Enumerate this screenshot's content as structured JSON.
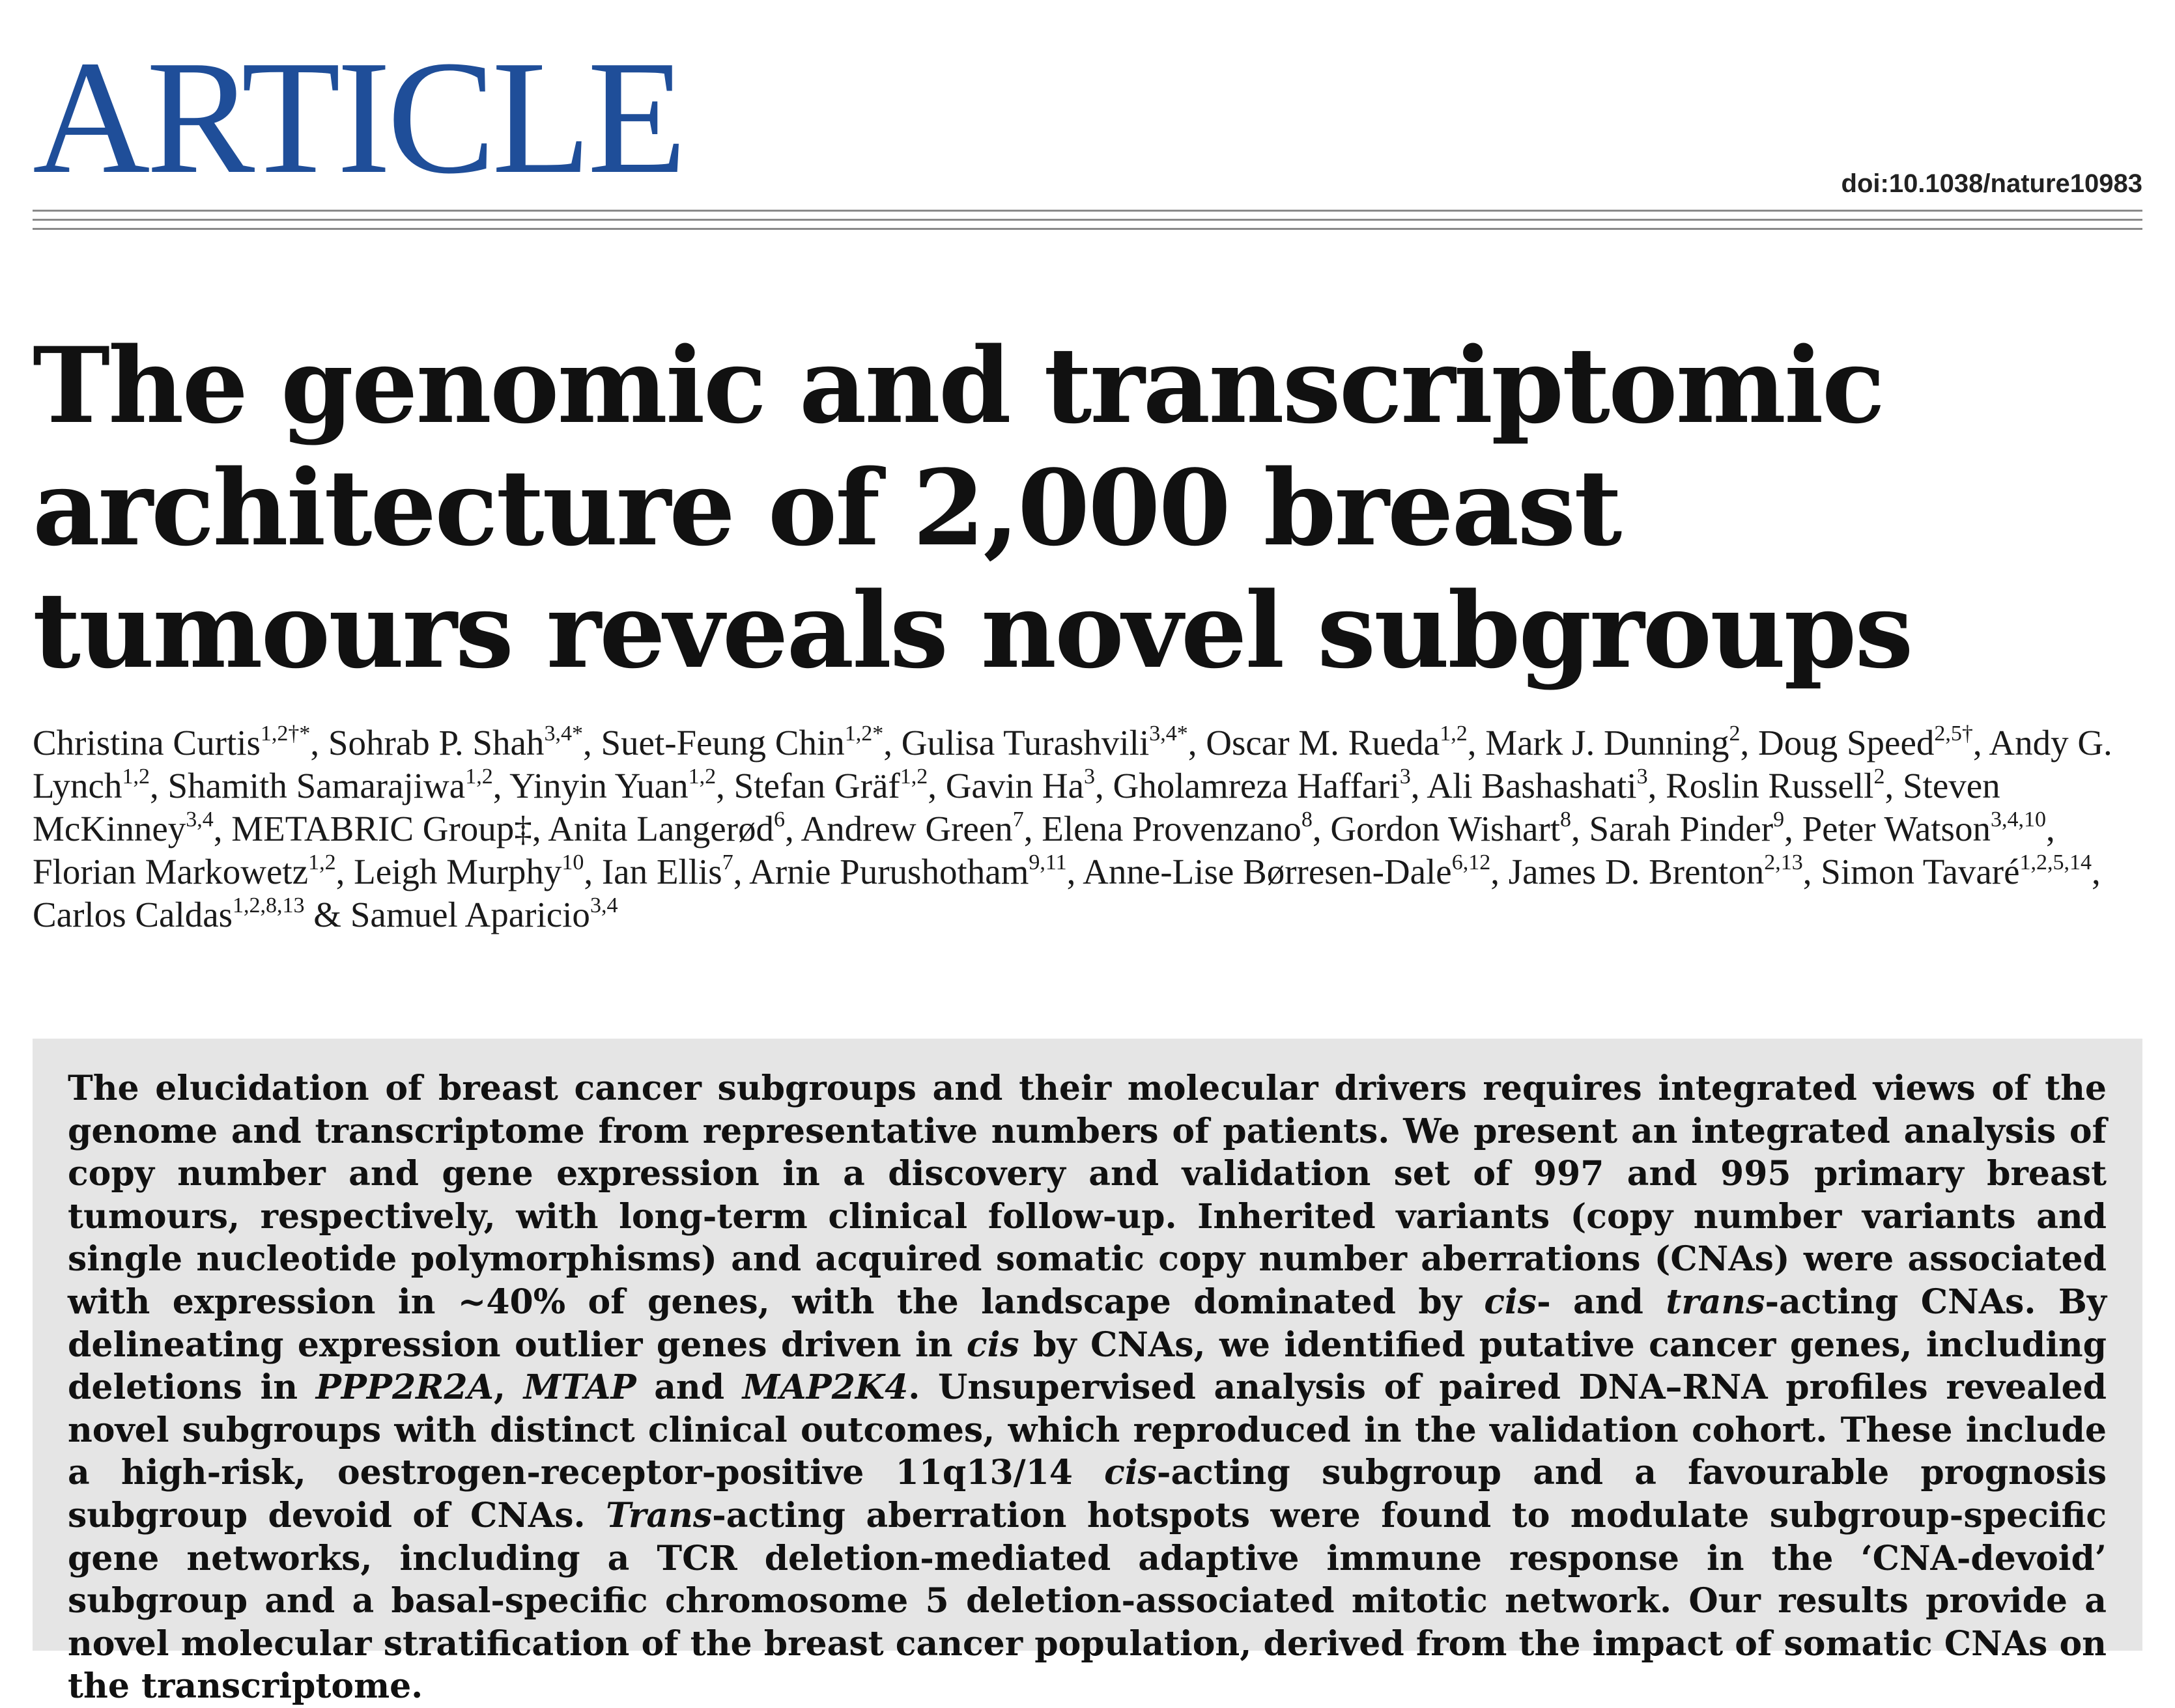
{
  "header": {
    "section_label": "ARTICLE",
    "doi": "doi:10.1038/nature10983",
    "accent_color": "#1f4e99"
  },
  "title": "The genomic and transcriptomic architecture of 2,000 breast tumours reveals novel subgroups",
  "authors": [
    {
      "name": "Christina Curtis",
      "marks": "1,2†*"
    },
    {
      "name": "Sohrab P. Shah",
      "marks": "3,4*"
    },
    {
      "name": "Suet-Feung Chin",
      "marks": "1,2*"
    },
    {
      "name": "Gulisa Turashvili",
      "marks": "3,4*"
    },
    {
      "name": "Oscar M. Rueda",
      "marks": "1,2"
    },
    {
      "name": "Mark J. Dunning",
      "marks": "2"
    },
    {
      "name": "Doug Speed",
      "marks": "2,5†"
    },
    {
      "name": "Andy G. Lynch",
      "marks": "1,2"
    },
    {
      "name": "Shamith Samarajiwa",
      "marks": "1,2"
    },
    {
      "name": "Yinyin Yuan",
      "marks": "1,2"
    },
    {
      "name": "Stefan Gräf",
      "marks": "1,2"
    },
    {
      "name": "Gavin Ha",
      "marks": "3"
    },
    {
      "name": "Gholamreza Haffari",
      "marks": "3"
    },
    {
      "name": "Ali Bashashati",
      "marks": "3"
    },
    {
      "name": "Roslin Russell",
      "marks": "2"
    },
    {
      "name": "Steven McKinney",
      "marks": "3,4"
    },
    {
      "name": "METABRIC Group‡",
      "marks": ""
    },
    {
      "name": "Anita Langerød",
      "marks": "6"
    },
    {
      "name": "Andrew Green",
      "marks": "7"
    },
    {
      "name": "Elena Provenzano",
      "marks": "8"
    },
    {
      "name": "Gordon Wishart",
      "marks": "8"
    },
    {
      "name": "Sarah Pinder",
      "marks": "9"
    },
    {
      "name": "Peter Watson",
      "marks": "3,4,10"
    },
    {
      "name": "Florian Markowetz",
      "marks": "1,2"
    },
    {
      "name": "Leigh Murphy",
      "marks": "10"
    },
    {
      "name": "Ian Ellis",
      "marks": "7"
    },
    {
      "name": "Arnie Purushotham",
      "marks": "9,11"
    },
    {
      "name": "Anne-Lise Børresen-Dale",
      "marks": "6,12"
    },
    {
      "name": "James D. Brenton",
      "marks": "2,13"
    },
    {
      "name": "Simon Tavaré",
      "marks": "1,2,5,14"
    },
    {
      "name": "Carlos Caldas",
      "marks": "1,2,8,13"
    },
    {
      "name": "Samuel Aparicio",
      "marks": "3,4"
    }
  ],
  "abstract": [
    {
      "text": "The elucidation of breast cancer subgroups and their molecular drivers requires integrated views of the genome and transcriptome from representative numbers of patients. We present an integrated analysis of copy number and gene expression in a discovery and validation set of 997 and 995 primary breast tumours, respectively, with long-term clinical follow-up. Inherited variants (copy number variants and single nucleotide polymorphisms) and acquired somatic copy number aberrations (CNAs) were associated with expression in ~40% of genes, with the landscape dominated by "
    },
    {
      "text": "cis",
      "italic": true
    },
    {
      "text": "- and "
    },
    {
      "text": "trans",
      "italic": true
    },
    {
      "text": "-acting CNAs. By delineating expression outlier genes driven in "
    },
    {
      "text": "cis",
      "italic": true
    },
    {
      "text": " by CNAs, we identified putative cancer genes, including deletions in "
    },
    {
      "text": "PPP2R2A",
      "italic": true
    },
    {
      "text": ", "
    },
    {
      "text": "MTAP",
      "italic": true
    },
    {
      "text": " and "
    },
    {
      "text": "MAP2K4",
      "italic": true
    },
    {
      "text": ". Unsupervised analysis of paired DNA–RNA profiles revealed novel subgroups with distinct clinical outcomes, which reproduced in the validation cohort. These include a high-risk, oestrogen-receptor-positive 11q13/14 "
    },
    {
      "text": "cis",
      "italic": true
    },
    {
      "text": "-acting subgroup and a favourable prognosis subgroup devoid of CNAs. "
    },
    {
      "text": "Trans",
      "italic": true
    },
    {
      "text": "-acting aberration hotspots were found to modulate subgroup-specific gene networks, including a TCR deletion-mediated adaptive immune response in the ‘CNA-devoid’ subgroup and a basal-specific chromosome 5 deletion-associated mitotic network. Our results provide a novel molecular stratification of the breast cancer population, derived from the impact of somatic CNAs on the transcriptome."
    }
  ]
}
